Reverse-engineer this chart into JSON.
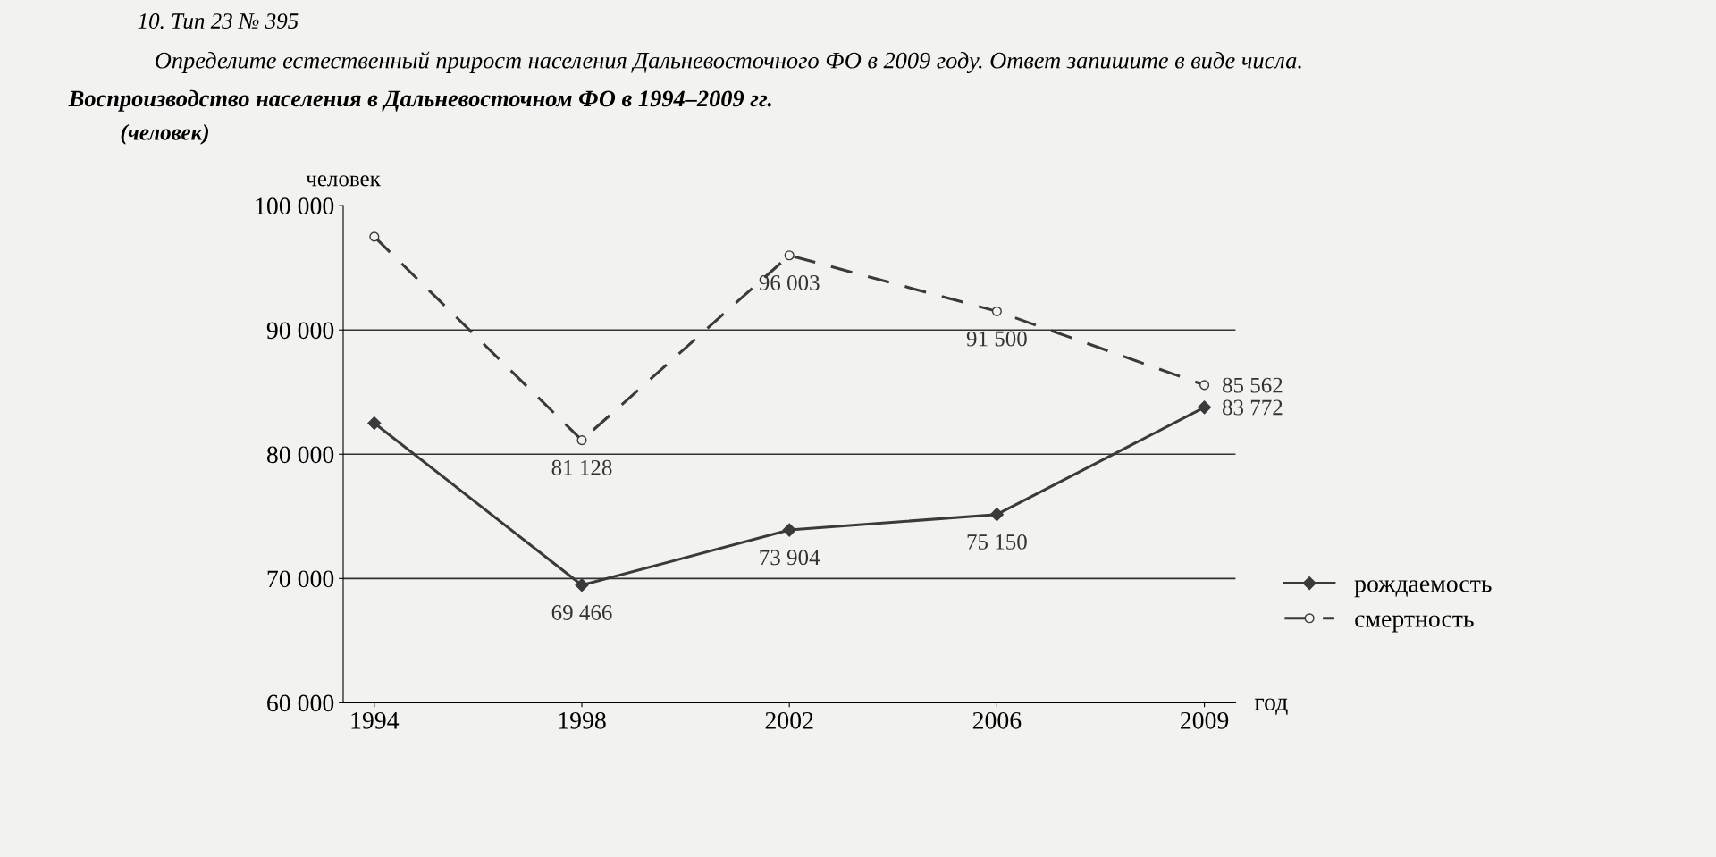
{
  "chart_data": {
    "type": "line",
    "title": "Воспроизводство населения в Дальневосточном ФО в 1994–2009 гг.",
    "subtitle": "(человек)",
    "annotations": [
      "10. Тип 23 № 395",
      "Определите естественный прирост населения Дальневосточного ФО в 2009 году. Ответ запишите в виде числа."
    ],
    "ylabel": "человек",
    "xlabel": "год",
    "categories": [
      "1994",
      "1998",
      "2002",
      "2006",
      "2009"
    ],
    "series": [
      {
        "name": "рождаемость",
        "color": "#3a3a3a",
        "marker": "diamond",
        "line_style": "solid",
        "values": [
          82500,
          69466,
          73904,
          75150,
          83772
        ],
        "value_labels": [
          null,
          "69 466",
          "73 904",
          "75 150",
          "83 772"
        ]
      },
      {
        "name": "смертность",
        "color": "#3a3a3a",
        "marker": "circle",
        "line_style": "dashed",
        "values": [
          97500,
          81128,
          96003,
          91500,
          85562
        ],
        "value_labels": [
          null,
          "81 128",
          "96 003",
          "91 500",
          "85 562"
        ]
      }
    ],
    "ylim": [
      60000,
      100000
    ],
    "yticks": [
      {
        "value": 60000,
        "label": "60 000"
      },
      {
        "value": 70000,
        "label": "70 000"
      },
      {
        "value": 80000,
        "label": "80 000"
      },
      {
        "value": 90000,
        "label": "90 000"
      },
      {
        "value": 100000,
        "label": "100 000"
      }
    ],
    "grid": "y",
    "legend": "right"
  }
}
